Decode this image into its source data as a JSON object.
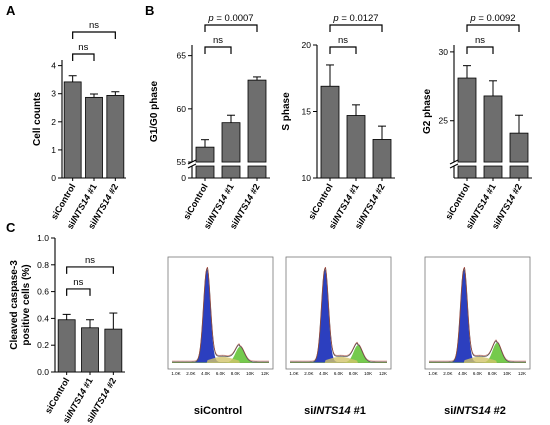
{
  "figure": {
    "panel_letters": [
      "A",
      "B",
      "C"
    ],
    "colors": {
      "bar": "#6e6e6e",
      "axis": "#000000",
      "histogram_outline": "#555555",
      "g1_fill": "#2c3fbf",
      "sg2_fill": "#66c43a",
      "fit_line": "#c0392b"
    }
  },
  "chart_data": [
    {
      "id": "cell-counts",
      "panel": "A",
      "type": "bar",
      "categories": [
        "siControl",
        "siINTS14 #1",
        "siINTS14 #2"
      ],
      "ylabel": "Cell counts",
      "ylim": [
        0,
        4.2
      ],
      "yticks": [
        0,
        1,
        2,
        3,
        4
      ],
      "values": [
        3.42,
        2.87,
        2.94
      ],
      "errors": [
        0.22,
        0.12,
        0.13
      ],
      "comparisons": [
        {
          "from": 0,
          "to": 1,
          "label": "ns"
        },
        {
          "from": 0,
          "to": 2,
          "label": "ns"
        }
      ]
    },
    {
      "id": "g1-phase",
      "panel": "B",
      "type": "bar",
      "categories": [
        "siControl",
        "siINTS14 #1",
        "siINTS14 #2"
      ],
      "ylabel": "G1/G0 phase",
      "ylim": [
        0,
        66
      ],
      "axis_break": [
        2,
        55
      ],
      "yticks": [
        0,
        55,
        60,
        65
      ],
      "values": [
        56.4,
        58.7,
        62.7
      ],
      "errors": [
        0.7,
        0.7,
        0.3
      ],
      "comparisons": [
        {
          "from": 0,
          "to": 1,
          "label": "ns"
        },
        {
          "from": 0,
          "to": 2,
          "label": "p = 0.0007"
        }
      ]
    },
    {
      "id": "s-phase",
      "panel": "B",
      "type": "bar",
      "categories": [
        "siControl",
        "siINTS14 #1",
        "siINTS14 #2"
      ],
      "ylabel": "S phase",
      "ylim": [
        10,
        20
      ],
      "yticks": [
        10,
        15,
        20
      ],
      "values": [
        16.9,
        14.7,
        12.9
      ],
      "errors": [
        1.6,
        0.8,
        1.0
      ],
      "comparisons": [
        {
          "from": 0,
          "to": 1,
          "label": "ns"
        },
        {
          "from": 0,
          "to": 2,
          "label": "p = 0.0127"
        }
      ]
    },
    {
      "id": "g2-phase",
      "panel": "B",
      "type": "bar",
      "categories": [
        "siControl",
        "siINTS14 #1",
        "siINTS14 #2"
      ],
      "ylabel": "G2 phase",
      "ylim": [
        0,
        30.5
      ],
      "axis_break": [
        2,
        22
      ],
      "yticks": [
        25,
        30
      ],
      "values": [
        28.1,
        26.8,
        24.1
      ],
      "errors": [
        0.9,
        1.1,
        1.3
      ],
      "comparisons": [
        {
          "from": 0,
          "to": 1,
          "label": "ns"
        },
        {
          "from": 0,
          "to": 2,
          "label": "p = 0.0092"
        }
      ]
    },
    {
      "id": "caspase",
      "panel": "C",
      "type": "bar",
      "categories": [
        "siControl",
        "siINTS14 #1",
        "siINTS14 #2"
      ],
      "ylabel": "Cleaved caspase-3 positive cells (%)",
      "ylim": [
        0,
        1.0
      ],
      "yticks": [
        0.0,
        0.2,
        0.4,
        0.6,
        0.8,
        1.0
      ],
      "values": [
        0.39,
        0.33,
        0.32
      ],
      "errors": [
        0.04,
        0.06,
        0.12
      ],
      "comparisons": [
        {
          "from": 0,
          "to": 1,
          "label": "ns"
        },
        {
          "from": 0,
          "to": 2,
          "label": "ns"
        }
      ]
    }
  ],
  "flow_histograms": {
    "x_ticks": [
      "1.0K",
      "2.0K",
      "4.0K",
      "6.0K",
      "8.0K",
      "10K",
      "12K"
    ],
    "captions": [
      "siControl",
      "siINTS14 #1",
      "siINTS14 #2"
    ]
  }
}
